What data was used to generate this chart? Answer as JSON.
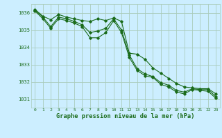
{
  "title": "Graphe pression niveau de la mer (hPa)",
  "background_color": "#cceeff",
  "grid_color": "#aaccbb",
  "line_color": "#1a6b1a",
  "xlim": [
    -0.5,
    23.5
  ],
  "ylim": [
    1030.5,
    1036.5
  ],
  "yticks": [
    1031,
    1032,
    1033,
    1034,
    1035,
    1036
  ],
  "xticks": [
    0,
    1,
    2,
    3,
    4,
    5,
    6,
    7,
    8,
    9,
    10,
    11,
    12,
    13,
    14,
    15,
    16,
    17,
    18,
    19,
    20,
    21,
    22,
    23
  ],
  "series": [
    [
      1036.2,
      1035.8,
      1035.6,
      1035.9,
      1035.75,
      1035.65,
      1035.55,
      1035.5,
      1035.65,
      1035.55,
      1035.7,
      1035.5,
      1033.65,
      1033.6,
      1033.3,
      1032.8,
      1032.5,
      1032.2,
      1031.9,
      1031.7,
      1031.65,
      1031.6,
      1031.6,
      1031.3
    ],
    [
      1036.15,
      1035.75,
      1035.2,
      1035.75,
      1035.65,
      1035.5,
      1035.3,
      1034.85,
      1034.95,
      1035.1,
      1035.65,
      1035.0,
      1033.55,
      1032.75,
      1032.45,
      1032.3,
      1031.95,
      1031.8,
      1031.5,
      1031.4,
      1031.6,
      1031.55,
      1031.55,
      1031.15
    ],
    [
      1036.1,
      1035.65,
      1035.1,
      1035.65,
      1035.55,
      1035.4,
      1035.2,
      1034.55,
      1034.55,
      1034.85,
      1035.55,
      1034.85,
      1033.4,
      1032.65,
      1032.35,
      1032.25,
      1031.85,
      1031.7,
      1031.4,
      1031.3,
      1031.55,
      1031.5,
      1031.45,
      1031.05
    ]
  ]
}
